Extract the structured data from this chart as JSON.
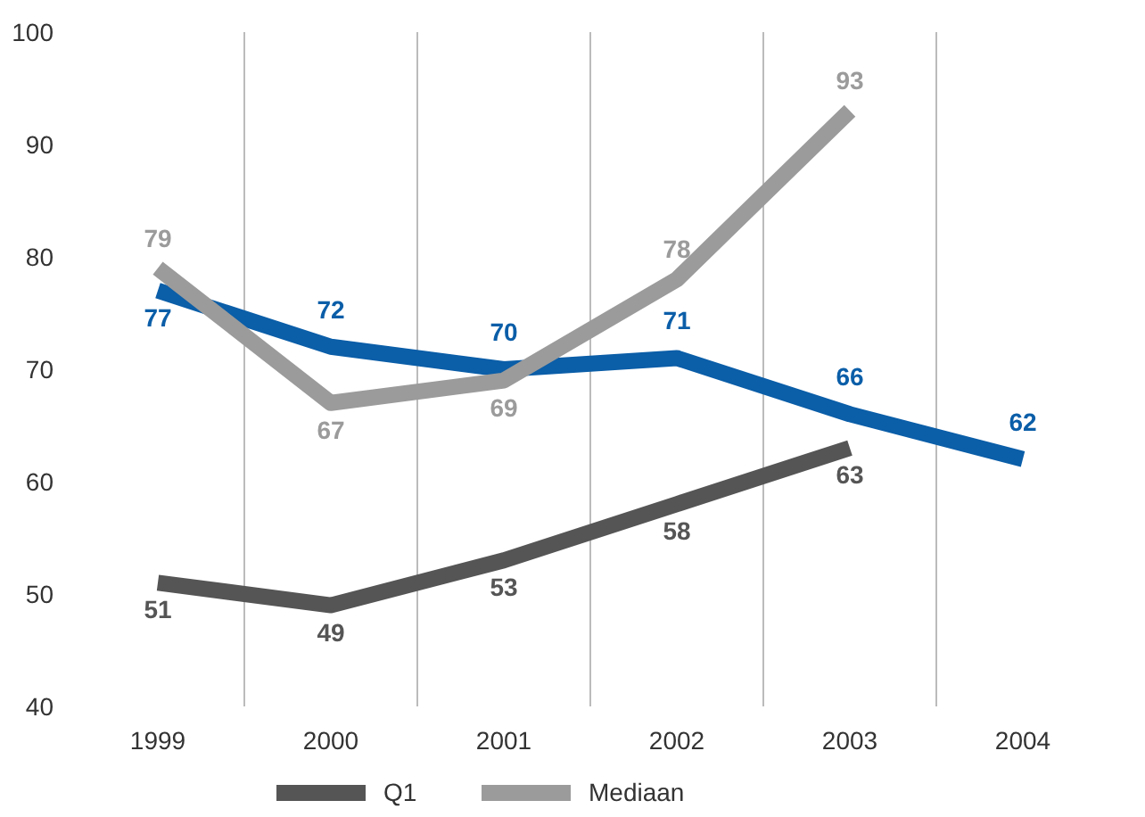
{
  "chart_data": {
    "type": "line",
    "categories": [
      "1999",
      "2000",
      "2001",
      "2002",
      "2003",
      "2004"
    ],
    "series": [
      {
        "color": "#0b5ea8",
        "values": [
          77,
          72,
          70,
          71,
          66,
          62
        ]
      },
      {
        "name": "Q1",
        "color": "#555555",
        "values": [
          51,
          49,
          53,
          58,
          63,
          null
        ]
      },
      {
        "name": "Mediaan",
        "color": "#9b9b9b",
        "values": [
          79,
          67,
          69,
          78,
          93,
          null
        ]
      }
    ],
    "ylim": [
      40,
      100
    ],
    "yticks": [
      40,
      50,
      60,
      70,
      80,
      90,
      100
    ],
    "grid": "x",
    "legend": "bottom",
    "data_labels": true,
    "marker": "none",
    "line_style": "solid"
  }
}
